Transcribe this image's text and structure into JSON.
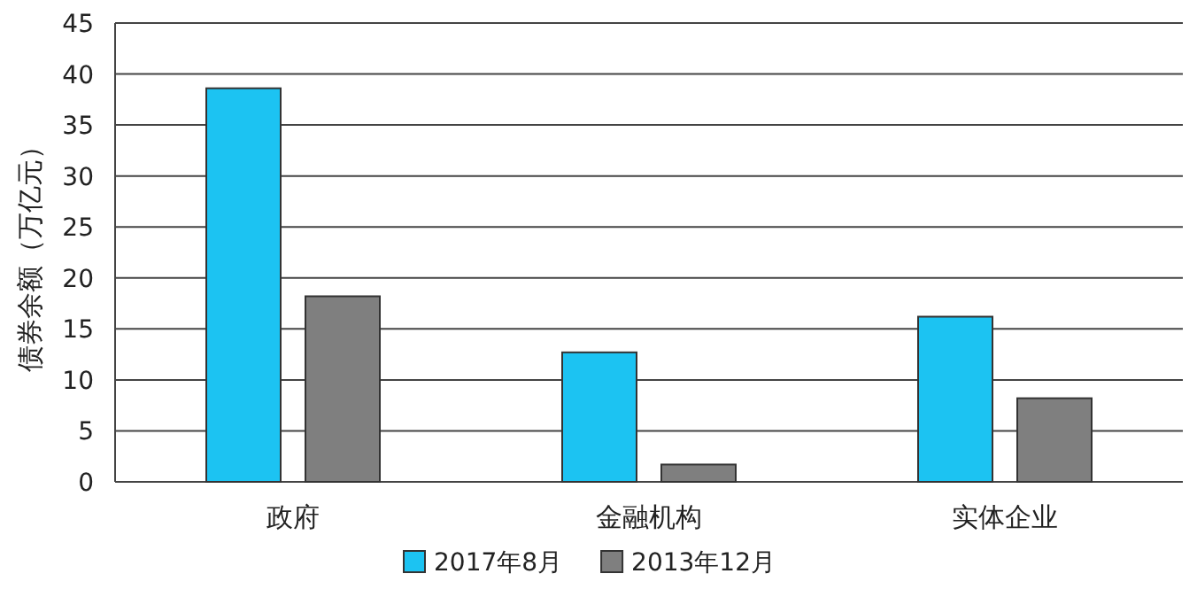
{
  "chart_data": {
    "type": "bar",
    "ylabel": "债券余额（万亿元）",
    "categories": [
      "政府",
      "金融机构",
      "实体企业"
    ],
    "series": [
      {
        "name": "2017年8月",
        "color": "#1cc3f2",
        "values": [
          38.6,
          12.7,
          16.2
        ]
      },
      {
        "name": "2013年12月",
        "color": "#7f7f7f",
        "values": [
          18.2,
          1.7,
          8.2
        ]
      }
    ],
    "ylim": [
      0,
      45
    ],
    "yticks": [
      0,
      5,
      10,
      15,
      20,
      25,
      30,
      35,
      40,
      45
    ],
    "grid": "y",
    "legend": "bottom"
  }
}
